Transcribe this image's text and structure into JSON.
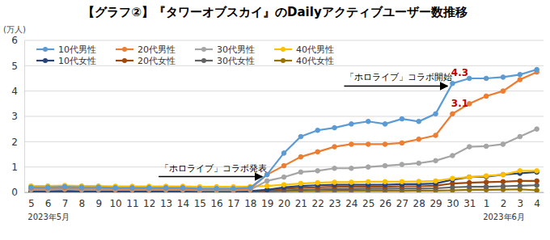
{
  "chart_data": {
    "type": "line",
    "title": "【グラフ②】『タワーオブスカイ』のDailyアクティブユーザー数推移",
    "y_label": "(万人)",
    "categories": [
      "5",
      "6",
      "7",
      "8",
      "9",
      "10",
      "11",
      "12",
      "13",
      "14",
      "15",
      "16",
      "17",
      "18",
      "19",
      "20",
      "21",
      "22",
      "23",
      "24",
      "25",
      "26",
      "27",
      "28",
      "29",
      "30",
      "31",
      "1",
      "2",
      "3",
      "4"
    ],
    "x_groups": [
      {
        "label": "2023年5月",
        "index": 0
      },
      {
        "label": "2023年6月",
        "index": 27
      }
    ],
    "ylim": [
      0,
      6
    ],
    "yticks": [
      0,
      1,
      2,
      3,
      4,
      5,
      6
    ],
    "grid": true,
    "legend": "upper left",
    "marker": "circle",
    "series": [
      {
        "name": "10代男性",
        "color": "#5B9BD5",
        "values": [
          0.2,
          0.2,
          0.22,
          0.2,
          0.2,
          0.18,
          0.18,
          0.18,
          0.18,
          0.18,
          0.15,
          0.15,
          0.15,
          0.18,
          0.7,
          1.55,
          2.2,
          2.45,
          2.55,
          2.7,
          2.8,
          2.7,
          2.9,
          2.8,
          3.1,
          4.3,
          4.5,
          4.5,
          4.55,
          4.65,
          4.85
        ]
      },
      {
        "name": "20代男性",
        "color": "#ED7D31",
        "values": [
          0.15,
          0.15,
          0.17,
          0.15,
          0.15,
          0.14,
          0.14,
          0.14,
          0.14,
          0.14,
          0.12,
          0.12,
          0.12,
          0.14,
          0.7,
          1.05,
          1.4,
          1.6,
          1.8,
          1.9,
          1.9,
          1.9,
          1.95,
          2.1,
          2.25,
          3.1,
          3.5,
          3.8,
          4.0,
          4.45,
          4.75
        ]
      },
      {
        "name": "30代男性",
        "color": "#A5A5A5",
        "values": [
          0.1,
          0.1,
          0.12,
          0.1,
          0.1,
          0.1,
          0.1,
          0.1,
          0.1,
          0.1,
          0.08,
          0.08,
          0.08,
          0.1,
          0.45,
          0.6,
          0.8,
          0.85,
          0.95,
          0.95,
          1.0,
          1.05,
          1.1,
          1.15,
          1.25,
          1.45,
          1.8,
          1.82,
          1.9,
          2.2,
          2.5
        ]
      },
      {
        "name": "40代男性",
        "color": "#FFC000",
        "values": [
          0.25,
          0.25,
          0.27,
          0.25,
          0.25,
          0.24,
          0.24,
          0.24,
          0.24,
          0.24,
          0.22,
          0.22,
          0.22,
          0.23,
          0.25,
          0.3,
          0.35,
          0.38,
          0.4,
          0.4,
          0.42,
          0.42,
          0.42,
          0.43,
          0.45,
          0.55,
          0.6,
          0.65,
          0.7,
          0.85,
          0.85
        ]
      },
      {
        "name": "10代女性",
        "color": "#264478",
        "values": [
          0.05,
          0.05,
          0.06,
          0.05,
          0.05,
          0.05,
          0.05,
          0.05,
          0.05,
          0.05,
          0.04,
          0.04,
          0.04,
          0.05,
          0.1,
          0.2,
          0.25,
          0.28,
          0.3,
          0.3,
          0.3,
          0.3,
          0.32,
          0.32,
          0.35,
          0.5,
          0.6,
          0.62,
          0.7,
          0.75,
          0.8
        ]
      },
      {
        "name": "20代女性",
        "color": "#9E480E",
        "values": [
          0.04,
          0.04,
          0.05,
          0.04,
          0.04,
          0.04,
          0.04,
          0.04,
          0.04,
          0.04,
          0.03,
          0.03,
          0.03,
          0.04,
          0.08,
          0.15,
          0.18,
          0.2,
          0.22,
          0.22,
          0.22,
          0.22,
          0.24,
          0.24,
          0.26,
          0.35,
          0.38,
          0.4,
          0.42,
          0.45,
          0.45
        ]
      },
      {
        "name": "30代女性",
        "color": "#636363",
        "values": [
          0.03,
          0.03,
          0.04,
          0.03,
          0.03,
          0.03,
          0.03,
          0.03,
          0.03,
          0.03,
          0.02,
          0.02,
          0.02,
          0.03,
          0.05,
          0.08,
          0.1,
          0.12,
          0.13,
          0.13,
          0.14,
          0.14,
          0.15,
          0.15,
          0.16,
          0.2,
          0.22,
          0.22,
          0.24,
          0.26,
          0.28
        ]
      },
      {
        "name": "40代女性",
        "color": "#997300",
        "values": [
          0.02,
          0.02,
          0.02,
          0.02,
          0.02,
          0.02,
          0.02,
          0.02,
          0.02,
          0.02,
          0.01,
          0.01,
          0.01,
          0.02,
          0.03,
          0.04,
          0.05,
          0.05,
          0.06,
          0.06,
          0.06,
          0.06,
          0.06,
          0.07,
          0.07,
          0.08,
          0.1,
          0.1,
          0.11,
          0.12,
          0.08
        ]
      }
    ],
    "arrows": [
      {
        "text": "「ホロライブ」コラボ発表",
        "x": 14,
        "y": 0.62
      },
      {
        "text": "「ホロライブ」コラボ開始",
        "x": 25,
        "y": 4.2
      }
    ],
    "point_labels": [
      {
        "text": "4.3",
        "x": 25,
        "y": 4.3
      },
      {
        "text": "3.1",
        "x": 25,
        "y": 3.1
      }
    ]
  }
}
